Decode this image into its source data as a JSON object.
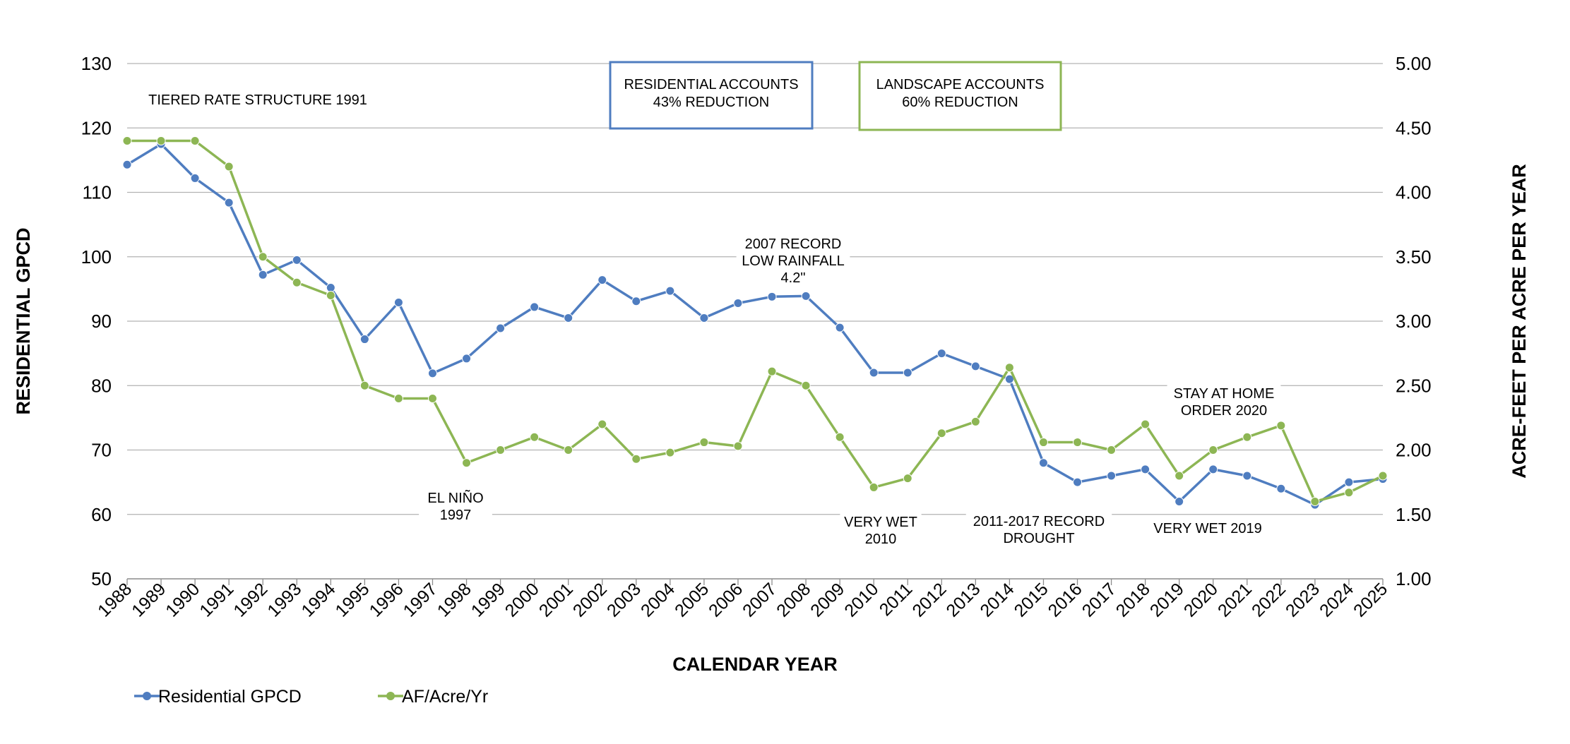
{
  "chart_data": {
    "type": "line",
    "xlabel": "CALENDAR YEAR",
    "ylabel": "RESIDENTIAL GPCD",
    "y2label": "ACRE-FEET PER ACRE PER YEAR",
    "ylim": [
      50,
      130
    ],
    "y2lim": [
      1.0,
      5.0
    ],
    "y_ticks": [
      "50",
      "60",
      "70",
      "80",
      "90",
      "100",
      "110",
      "120",
      "130"
    ],
    "y2_ticks": [
      "1.00",
      "1.50",
      "2.00",
      "2.50",
      "3.00",
      "3.50",
      "4.00",
      "4.50",
      "5.00"
    ],
    "grid": "horizontal",
    "legend_position": "bottom-left",
    "categories": [
      "1988",
      "1989",
      "1990",
      "1991",
      "1992",
      "1993",
      "1994",
      "1995",
      "1996",
      "1997",
      "1998",
      "1999",
      "2000",
      "2001",
      "2002",
      "2003",
      "2004",
      "2005",
      "2006",
      "2007",
      "2008",
      "2009",
      "2010",
      "2011",
      "2012",
      "2013",
      "2014",
      "2015",
      "2016",
      "2017",
      "2018",
      "2019",
      "2020",
      "2021",
      "2022",
      "2023",
      "2024",
      "2025"
    ],
    "series": [
      {
        "name": "Residential GPCD",
        "axis": "left",
        "color": "#4F7DC0",
        "values": [
          114.3,
          117.5,
          112.2,
          108.4,
          97.2,
          99.5,
          95.2,
          87.2,
          92.9,
          81.9,
          84.2,
          88.9,
          92.2,
          90.5,
          96.4,
          93.1,
          94.7,
          90.5,
          92.8,
          93.8,
          93.9,
          89.0,
          82.0,
          82.0,
          85.0,
          83.0,
          81.0,
          68.0,
          65.0,
          66.0,
          67.0,
          62.0,
          67.0,
          66.0,
          64.0,
          61.5,
          65.0,
          65.5
        ]
      },
      {
        "name": "AF/Acre/Yr",
        "axis": "right",
        "color": "#8DB654",
        "values": [
          4.4,
          4.4,
          4.4,
          4.2,
          3.5,
          3.3,
          3.2,
          2.5,
          2.4,
          2.4,
          1.9,
          2.0,
          2.1,
          2.0,
          2.2,
          1.93,
          1.98,
          2.06,
          2.03,
          2.61,
          2.5,
          2.1,
          1.71,
          1.78,
          2.13,
          2.22,
          2.64,
          2.06,
          2.06,
          2.0,
          2.2,
          1.8,
          2.0,
          2.1,
          2.19,
          1.6,
          1.67,
          1.8
        ]
      }
    ],
    "annotations": [
      {
        "id": "tiered",
        "lines": [
          "TIERED RATE STRUCTURE 1991"
        ]
      },
      {
        "id": "rainfall2007",
        "lines": [
          "2007 RECORD",
          "LOW RAINFALL",
          "4.2\""
        ]
      },
      {
        "id": "elnino",
        "lines": [
          "EL NIÑO",
          "1997"
        ]
      },
      {
        "id": "verywet2010",
        "lines": [
          "VERY WET",
          "2010"
        ]
      },
      {
        "id": "drought",
        "lines": [
          "2011-2017 RECORD",
          "DROUGHT"
        ]
      },
      {
        "id": "verywet2019",
        "lines": [
          "VERY WET 2019"
        ]
      },
      {
        "id": "stayathome",
        "lines": [
          "STAY AT HOME",
          "ORDER 2020"
        ]
      }
    ],
    "callouts": [
      {
        "id": "residential",
        "color": "#4F7DC0",
        "lines": [
          "RESIDENTIAL ACCOUNTS",
          "43% REDUCTION"
        ]
      },
      {
        "id": "landscape",
        "color": "#8DB654",
        "lines": [
          "LANDSCAPE ACCOUNTS",
          "60% REDUCTION"
        ]
      }
    ]
  }
}
